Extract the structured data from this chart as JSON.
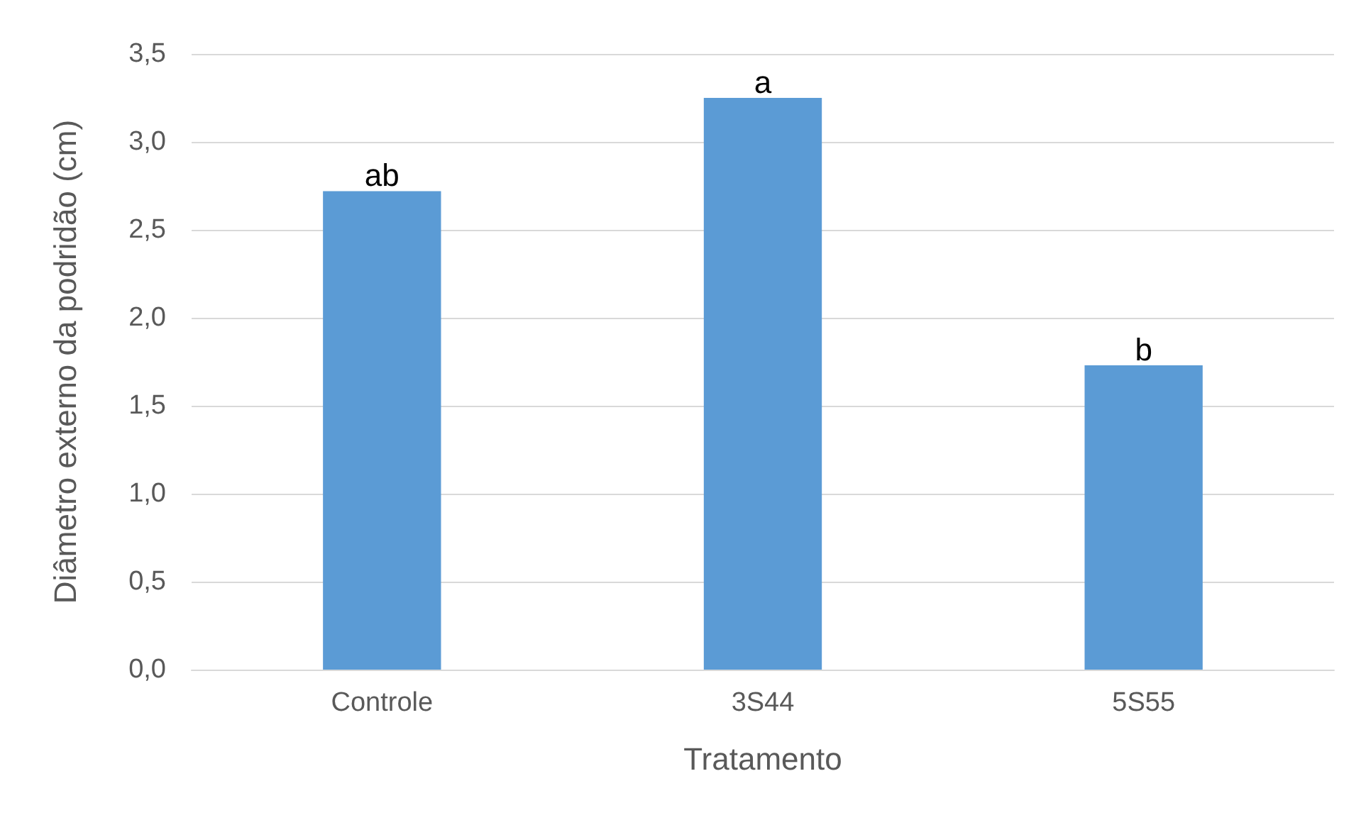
{
  "chart_data": {
    "type": "bar",
    "xlabel": "Tratamento",
    "ylabel": "Diâmetro externo da podridão (cm)",
    "categories": [
      "Controle",
      "3S44",
      "5S55"
    ],
    "values": [
      2.72,
      3.25,
      1.73
    ],
    "color": "#5b9bd5",
    "ylim": [
      0,
      3.5
    ],
    "yticks": [
      {
        "value": 0,
        "label": "0,0"
      },
      {
        "value": 0.5,
        "label": "0,5"
      },
      {
        "value": 1,
        "label": "1,0"
      },
      {
        "value": 1.5,
        "label": "1,5"
      },
      {
        "value": 2,
        "label": "2,0"
      },
      {
        "value": 2.5,
        "label": "2,5"
      },
      {
        "value": 3,
        "label": "3,0"
      },
      {
        "value": 3.5,
        "label": "3,5"
      }
    ],
    "annotations": [
      {
        "text": "ab",
        "x": "Controle",
        "y": 2.72
      },
      {
        "text": "a",
        "x": "3S44",
        "y": 3.25
      },
      {
        "text": "b",
        "x": "5S55",
        "y": 1.73
      }
    ],
    "grid": "y"
  }
}
